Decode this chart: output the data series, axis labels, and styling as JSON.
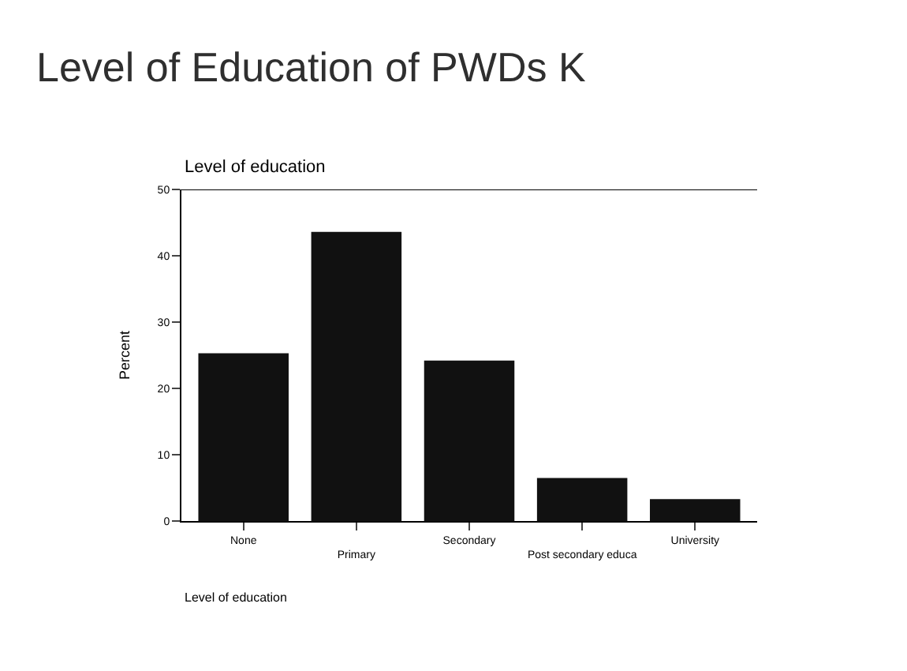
{
  "chart_data": {
    "type": "bar",
    "title": "Level of Education of PWDs K",
    "subtitle": "Level of education",
    "xlabel": "Level of education",
    "ylabel": "Percent",
    "categories": [
      "None",
      "Primary",
      "Secondary",
      "Post secondary educa",
      "University"
    ],
    "values": [
      25.3,
      43.6,
      24.2,
      6.5,
      3.3
    ],
    "color": "#111111",
    "ylim": [
      0,
      50
    ],
    "yticks": [
      0,
      10,
      20,
      30,
      40,
      50
    ]
  }
}
